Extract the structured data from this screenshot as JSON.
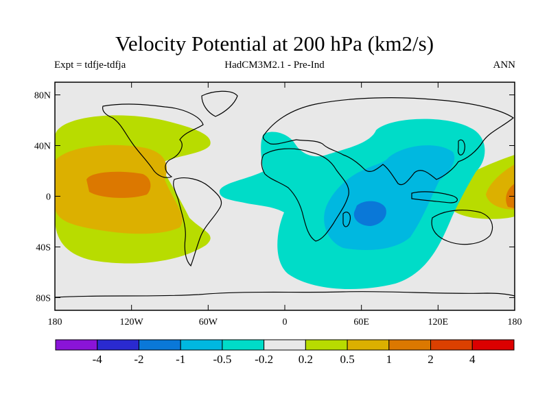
{
  "title": "Velocity Potential at 200 hPa (km2/s)",
  "subtitle_left": "Expt = tdfje-tdfja",
  "subtitle_center": "HadCM3M2.1 - Pre-Ind",
  "subtitle_right": "ANN",
  "y_ticks": [
    {
      "lat": 80,
      "label": "80N"
    },
    {
      "lat": 40,
      "label": "40N"
    },
    {
      "lat": 0,
      "label": "0"
    },
    {
      "lat": -40,
      "label": "40S"
    },
    {
      "lat": -80,
      "label": "80S"
    }
  ],
  "x_ticks": [
    {
      "lon": 180,
      "label": "180"
    },
    {
      "lon": 240,
      "label": "120W"
    },
    {
      "lon": 300,
      "label": "60W"
    },
    {
      "lon": 360,
      "label": "0"
    },
    {
      "lon": 420,
      "label": "60E"
    },
    {
      "lon": 480,
      "label": "120E"
    },
    {
      "lon": 540,
      "label": "180"
    }
  ],
  "colorbar": {
    "colors": [
      "#8a14d8",
      "#2a2ad0",
      "#0a78d8",
      "#00b8e0",
      "#00dcc8",
      "#e8e8e8",
      "#b8dc00",
      "#dcb000",
      "#dc7800",
      "#dc4000",
      "#dc0000"
    ],
    "labels": [
      "-4",
      "-2",
      "-1",
      "-0.5",
      "-0.2",
      "0.2",
      "0.5",
      "1",
      "2",
      "4"
    ]
  },
  "background_color": "#e8e8e8"
}
